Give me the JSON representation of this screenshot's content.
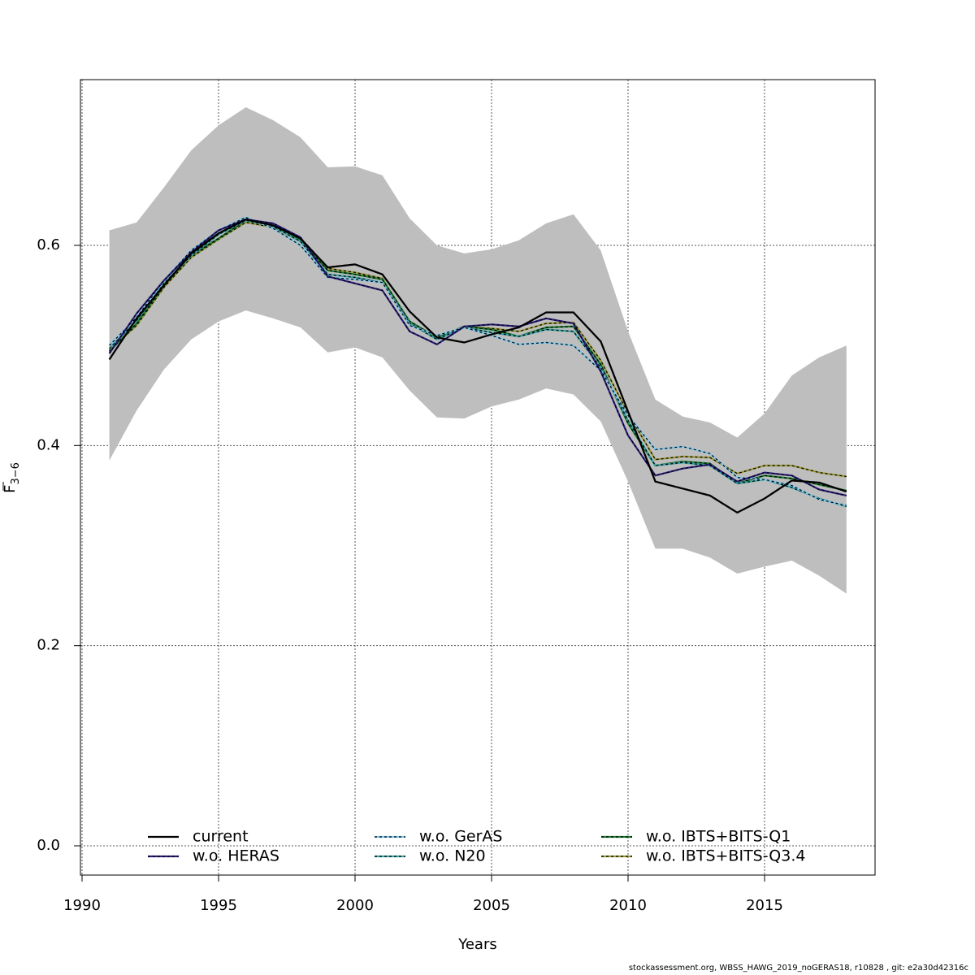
{
  "chart_data": {
    "type": "line",
    "xlabel": "Years",
    "ylabel": "F",
    "ylabel_subscript": "3−6",
    "xlim": [
      1990,
      2019
    ],
    "ylim": [
      -0.03,
      0.77
    ],
    "xticks": [
      1990,
      1995,
      2000,
      2005,
      2010,
      2015
    ],
    "yticks": [
      0.0,
      0.2,
      0.4,
      0.6
    ],
    "ytick_labels": [
      "0.0",
      "0.2",
      "0.4",
      "0.6"
    ],
    "grid": true,
    "legend_placement": "bottom",
    "x": [
      1991,
      1992,
      1993,
      1994,
      1995,
      1996,
      1997,
      1998,
      1999,
      2000,
      2001,
      2002,
      2003,
      2004,
      2005,
      2006,
      2007,
      2008,
      2009,
      2010,
      2011,
      2012,
      2013,
      2014,
      2015,
      2016,
      2017,
      2018
    ],
    "confidence_band": {
      "color": "#bebebe",
      "upper": [
        0.615,
        0.623,
        0.658,
        0.695,
        0.72,
        0.738,
        0.725,
        0.708,
        0.678,
        0.679,
        0.67,
        0.627,
        0.6,
        0.592,
        0.596,
        0.605,
        0.622,
        0.631,
        0.595,
        0.514,
        0.446,
        0.429,
        0.423,
        0.408,
        0.432,
        0.47,
        0.488,
        0.5
      ],
      "lower": [
        0.385,
        0.435,
        0.476,
        0.506,
        0.524,
        0.535,
        0.527,
        0.518,
        0.493,
        0.498,
        0.488,
        0.455,
        0.428,
        0.427,
        0.439,
        0.446,
        0.457,
        0.451,
        0.424,
        0.364,
        0.297,
        0.297,
        0.288,
        0.272,
        0.279,
        0.285,
        0.27,
        0.252
      ]
    },
    "series": [
      {
        "name": "current",
        "color": "#000000",
        "dashed": false,
        "values": [
          0.486,
          0.527,
          0.56,
          0.592,
          0.612,
          0.626,
          0.62,
          0.607,
          0.578,
          0.581,
          0.571,
          0.534,
          0.508,
          0.503,
          0.511,
          0.518,
          0.533,
          0.533,
          0.504,
          0.434,
          0.364,
          0.357,
          0.35,
          0.333,
          0.347,
          0.365,
          0.363,
          0.354
        ]
      },
      {
        "name": "w.o. HERAS",
        "color": "#2c1e80",
        "dashed": true,
        "values": [
          0.492,
          0.532,
          0.565,
          0.593,
          0.615,
          0.626,
          0.622,
          0.608,
          0.569,
          0.562,
          0.555,
          0.514,
          0.501,
          0.519,
          0.521,
          0.519,
          0.527,
          0.522,
          0.474,
          0.41,
          0.37,
          0.377,
          0.381,
          0.364,
          0.373,
          0.37,
          0.356,
          0.35
        ]
      },
      {
        "name": "w.o. GerAS",
        "color": "#7fc7ea",
        "dashed": true,
        "values": [
          0.5,
          0.528,
          0.565,
          0.595,
          0.615,
          0.628,
          0.617,
          0.6,
          0.568,
          0.566,
          0.563,
          0.52,
          0.51,
          0.518,
          0.51,
          0.501,
          0.503,
          0.5,
          0.475,
          0.43,
          0.396,
          0.399,
          0.392,
          0.368,
          0.366,
          0.36,
          0.346,
          0.34
        ]
      },
      {
        "name": "w.o. N20",
        "color": "#3aa6a6",
        "dashed": true,
        "values": [
          0.497,
          0.525,
          0.562,
          0.59,
          0.611,
          0.625,
          0.619,
          0.604,
          0.571,
          0.568,
          0.563,
          0.522,
          0.506,
          0.518,
          0.513,
          0.509,
          0.516,
          0.514,
          0.478,
          0.425,
          0.38,
          0.383,
          0.38,
          0.362,
          0.366,
          0.358,
          0.347,
          0.339
        ]
      },
      {
        "name": "w.o. IBTS+BITS-Q1",
        "color": "#1b7a2e",
        "dashed": true,
        "values": [
          0.494,
          0.522,
          0.56,
          0.59,
          0.607,
          0.625,
          0.619,
          0.605,
          0.575,
          0.571,
          0.566,
          0.524,
          0.508,
          0.519,
          0.516,
          0.509,
          0.518,
          0.519,
          0.481,
          0.422,
          0.38,
          0.384,
          0.382,
          0.362,
          0.37,
          0.367,
          0.361,
          0.355
        ]
      },
      {
        "name": "w.o. IBTS+BITS-Q3.4",
        "color": "#9c9a3a",
        "dashed": true,
        "values": [
          0.495,
          0.52,
          0.558,
          0.588,
          0.606,
          0.623,
          0.618,
          0.604,
          0.577,
          0.573,
          0.567,
          0.523,
          0.507,
          0.519,
          0.517,
          0.514,
          0.522,
          0.523,
          0.485,
          0.432,
          0.386,
          0.389,
          0.388,
          0.372,
          0.38,
          0.38,
          0.373,
          0.369
        ]
      }
    ]
  },
  "footer": "stockassessment.org, WBSS_HAWG_2019_noGERAS18, r10828 , git: e2a30d42316c"
}
